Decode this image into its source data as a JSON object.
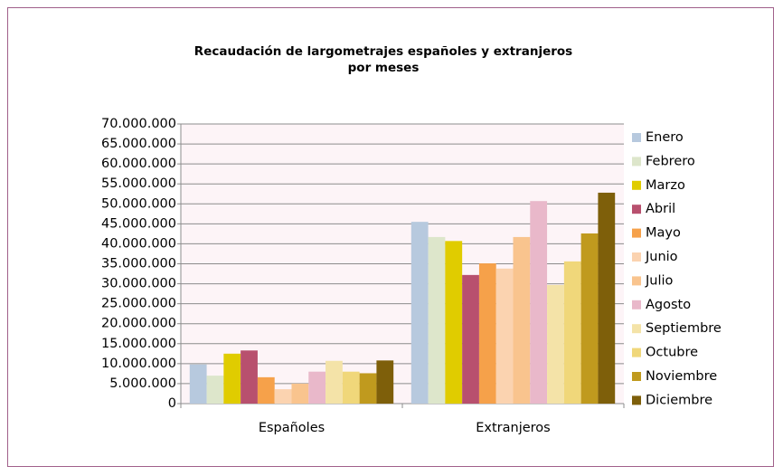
{
  "chart_data": {
    "type": "bar",
    "title": "Recaudación de largometrajes españoles y extranjeros por meses",
    "categories": [
      "Españoles",
      "Extranjeros"
    ],
    "series": [
      {
        "name": "Enero",
        "color": "#b7c9de",
        "values": [
          9800000,
          45500000
        ]
      },
      {
        "name": "Febrero",
        "color": "#dde6cb",
        "values": [
          7000000,
          41700000
        ]
      },
      {
        "name": "Marzo",
        "color": "#e0cc00",
        "values": [
          12500000,
          40700000
        ]
      },
      {
        "name": "Abril",
        "color": "#b8506e",
        "values": [
          13300000,
          32200000
        ]
      },
      {
        "name": "Mayo",
        "color": "#f6a14a",
        "values": [
          6600000,
          35100000
        ]
      },
      {
        "name": "Junio",
        "color": "#fbd3b0",
        "values": [
          3600000,
          33800000
        ]
      },
      {
        "name": "Julio",
        "color": "#f9c48e",
        "values": [
          5000000,
          41700000
        ]
      },
      {
        "name": "Agosto",
        "color": "#e9b8ca",
        "values": [
          8000000,
          50700000
        ]
      },
      {
        "name": "Septiembre",
        "color": "#f4e3a8",
        "values": [
          10700000,
          29700000
        ]
      },
      {
        "name": "Octubre",
        "color": "#f0d77a",
        "values": [
          8000000,
          35600000
        ]
      },
      {
        "name": "Noviembre",
        "color": "#c09a1e",
        "values": [
          7600000,
          42600000
        ]
      },
      {
        "name": "Diciembre",
        "color": "#7e5f0a",
        "values": [
          10800000,
          52800000
        ]
      }
    ],
    "ylim": [
      0,
      70000000
    ],
    "yticks": [
      0,
      {
        "value": 5000000,
        "label": "5.000.000"
      },
      {
        "value": 10000000,
        "label": "10.000.000"
      },
      {
        "value": 15000000,
        "label": "15.000.000"
      },
      {
        "value": 20000000,
        "label": "20.000.000"
      },
      {
        "value": 25000000,
        "label": "25.000.000"
      },
      {
        "value": 30000000,
        "label": "30.000.000"
      },
      {
        "value": 35000000,
        "label": "35.000.000"
      },
      {
        "value": 40000000,
        "label": "40.000.000"
      },
      {
        "value": 45000000,
        "label": "45.000.000"
      },
      {
        "value": 50000000,
        "label": "50.000.000"
      },
      {
        "value": 55000000,
        "label": "55.000.000"
      },
      {
        "value": 60000000,
        "label": "60.000.000"
      },
      {
        "value": 65000000,
        "label": "65.000.000"
      },
      {
        "value": 70000000,
        "label": "70.000.000"
      }
    ],
    "grid": true,
    "legend": "right"
  }
}
